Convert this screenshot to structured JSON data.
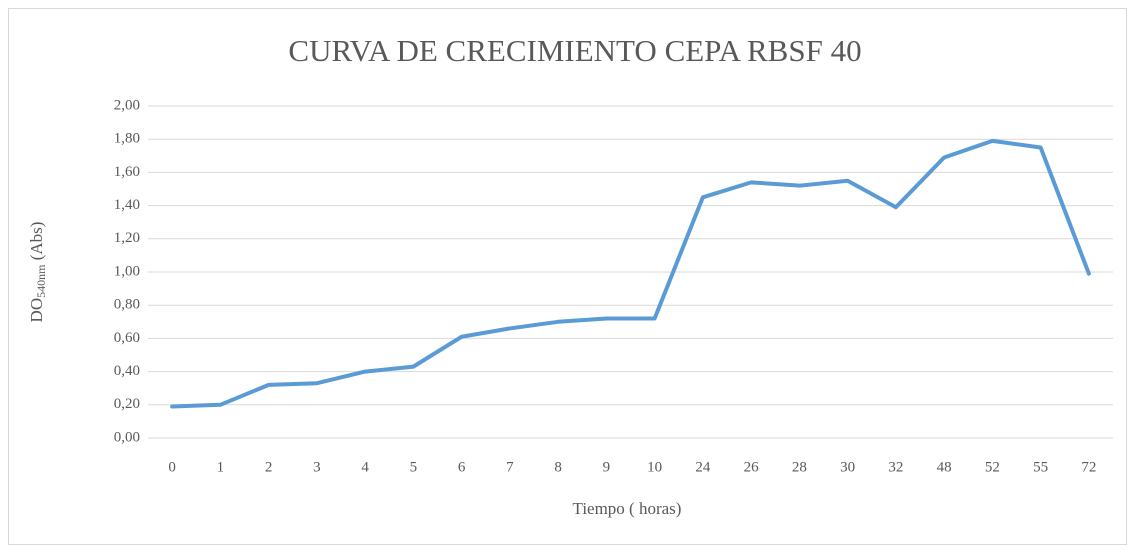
{
  "chart_data": {
    "type": "line",
    "title": "CURVA DE  CRECIMIENTO CEPA RBSF 40",
    "xlabel": "Tiempo  ( horas)",
    "ylabel": {
      "main": "DO",
      "sub": "540nm",
      "unit": " (Abs)"
    },
    "categories": [
      "0",
      "1",
      "2",
      "3",
      "4",
      "5",
      "6",
      "7",
      "8",
      "9",
      "10",
      "24",
      "26",
      "28",
      "30",
      "32",
      "48",
      "52",
      "55",
      "72"
    ],
    "series": [
      {
        "color": "#5b9bd5",
        "values": [
          0.19,
          0.2,
          0.32,
          0.33,
          0.4,
          0.43,
          0.61,
          0.66,
          0.7,
          0.72,
          0.72,
          1.45,
          1.54,
          1.52,
          1.55,
          1.39,
          1.69,
          1.79,
          1.75,
          0.99
        ]
      }
    ],
    "ylim": [
      0,
      2
    ],
    "yticks": [
      {
        "value": 0,
        "label": "0,00"
      },
      {
        "value": 0.2,
        "label": "0,20"
      },
      {
        "value": 0.4,
        "label": "0,40"
      },
      {
        "value": 0.6,
        "label": "0,60"
      },
      {
        "value": 0.8,
        "label": "0,80"
      },
      {
        "value": 1,
        "label": "1,00"
      },
      {
        "value": 1.2,
        "label": "1,20"
      },
      {
        "value": 1.4,
        "label": "1,40"
      },
      {
        "value": 1.6,
        "label": "1,60"
      },
      {
        "value": 1.8,
        "label": "1,80"
      },
      {
        "value": 2,
        "label": "2,00"
      }
    ],
    "grid": true
  }
}
